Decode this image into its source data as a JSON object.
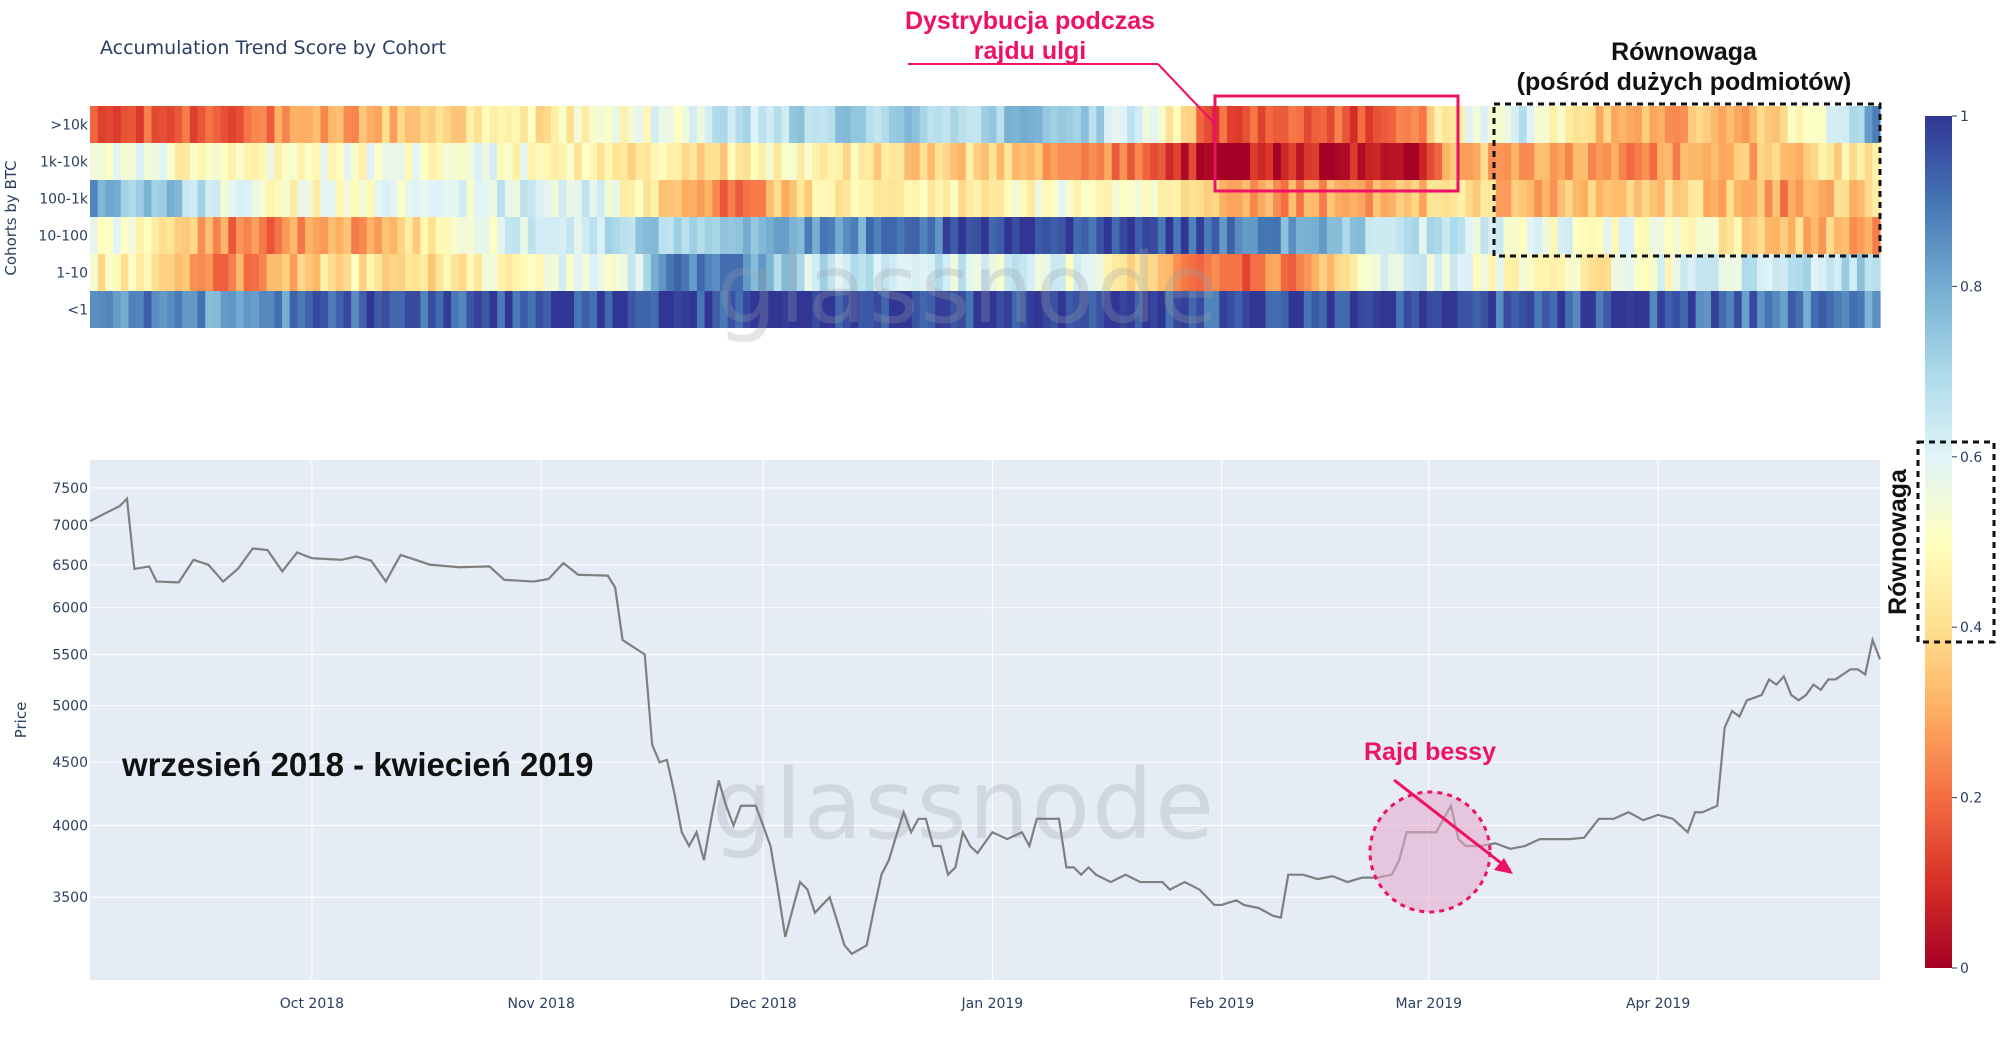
{
  "colors": {
    "plot_bg": "#e5ecf6",
    "grid": "#ffffff",
    "price_line": "#7f7f7f",
    "accent": "#ee1166",
    "colorscale": [
      "#a50026",
      "#d73027",
      "#f46d43",
      "#fdae61",
      "#fee090",
      "#ffffbf",
      "#e0f3f8",
      "#abd9e9",
      "#74add1",
      "#4575b4",
      "#313695"
    ]
  },
  "watermark": "glassnode",
  "heatmap": {
    "title": "Accumulation Trend Score by Cohort",
    "ylabel": "Cohorts by BTC",
    "cohorts": [
      ">10k",
      "1k-10k",
      "100-1k",
      "10-100",
      "1-10",
      "<1"
    ],
    "n_days": 233,
    "days_to_last_label": 206,
    "colorbar_ticks": [
      "1",
      "0.8",
      "0.6",
      "0.4",
      "0.2",
      "0"
    ]
  },
  "chart_data": {
    "type": "line",
    "ylabel": "Price",
    "ylim": [
      3000,
      7900
    ],
    "yticks": [
      3500,
      4000,
      4500,
      5000,
      5500,
      6000,
      6500,
      7000,
      7500
    ],
    "ytick_labels": [
      "3500",
      "4000",
      "4500",
      "5000",
      "5500",
      "6000",
      "6500",
      "7000",
      "7500"
    ],
    "xticks": [
      "Oct 2018",
      "Nov 2018",
      "Dec 2018",
      "Jan 2019",
      "Feb 2019",
      "Mar 2019",
      "Apr 2019"
    ],
    "keypoints": [
      [
        0,
        7050
      ],
      [
        2,
        7150
      ],
      [
        4,
        7250
      ],
      [
        5,
        7350
      ],
      [
        6,
        6450
      ],
      [
        8,
        6480
      ],
      [
        9,
        6300
      ],
      [
        12,
        6290
      ],
      [
        14,
        6560
      ],
      [
        16,
        6500
      ],
      [
        18,
        6300
      ],
      [
        20,
        6450
      ],
      [
        22,
        6700
      ],
      [
        24,
        6680
      ],
      [
        26,
        6420
      ],
      [
        28,
        6650
      ],
      [
        30,
        6580
      ],
      [
        34,
        6560
      ],
      [
        36,
        6600
      ],
      [
        38,
        6550
      ],
      [
        40,
        6300
      ],
      [
        42,
        6620
      ],
      [
        44,
        6560
      ],
      [
        46,
        6500
      ],
      [
        50,
        6470
      ],
      [
        54,
        6480
      ],
      [
        56,
        6320
      ],
      [
        60,
        6300
      ],
      [
        62,
        6330
      ],
      [
        64,
        6520
      ],
      [
        66,
        6380
      ],
      [
        70,
        6370
      ],
      [
        71,
        6230
      ],
      [
        72,
        5650
      ],
      [
        74,
        5550
      ],
      [
        75,
        5500
      ],
      [
        76,
        4650
      ],
      [
        77,
        4500
      ],
      [
        78,
        4520
      ],
      [
        79,
        4250
      ],
      [
        80,
        3950
      ],
      [
        81,
        3850
      ],
      [
        82,
        3950
      ],
      [
        83,
        3750
      ],
      [
        84,
        4050
      ],
      [
        85,
        4350
      ],
      [
        86,
        4150
      ],
      [
        87,
        4000
      ],
      [
        88,
        4150
      ],
      [
        90,
        4150
      ],
      [
        92,
        3850
      ],
      [
        93,
        3550
      ],
      [
        94,
        3250
      ],
      [
        96,
        3600
      ],
      [
        97,
        3550
      ],
      [
        98,
        3400
      ],
      [
        100,
        3500
      ],
      [
        102,
        3200
      ],
      [
        103,
        3150
      ],
      [
        105,
        3200
      ],
      [
        107,
        3650
      ],
      [
        108,
        3750
      ],
      [
        110,
        4100
      ],
      [
        111,
        3950
      ],
      [
        112,
        4050
      ],
      [
        113,
        4050
      ],
      [
        114,
        3850
      ],
      [
        115,
        3850
      ],
      [
        116,
        3650
      ],
      [
        117,
        3700
      ],
      [
        118,
        3950
      ],
      [
        119,
        3850
      ],
      [
        120,
        3800
      ],
      [
        122,
        3950
      ],
      [
        124,
        3900
      ],
      [
        126,
        3950
      ],
      [
        127,
        3850
      ],
      [
        128,
        4050
      ],
      [
        131,
        4050
      ],
      [
        132,
        3700
      ],
      [
        133,
        3700
      ],
      [
        134,
        3650
      ],
      [
        135,
        3700
      ],
      [
        136,
        3650
      ],
      [
        138,
        3600
      ],
      [
        140,
        3650
      ],
      [
        142,
        3600
      ],
      [
        144,
        3600
      ],
      [
        145,
        3600
      ],
      [
        146,
        3550
      ],
      [
        148,
        3600
      ],
      [
        150,
        3550
      ],
      [
        152,
        3450
      ],
      [
        153,
        3450
      ],
      [
        155,
        3480
      ],
      [
        156,
        3450
      ],
      [
        158,
        3430
      ],
      [
        160,
        3380
      ],
      [
        161,
        3370
      ],
      [
        162,
        3650
      ],
      [
        164,
        3650
      ],
      [
        166,
        3620
      ],
      [
        168,
        3640
      ],
      [
        170,
        3600
      ],
      [
        172,
        3630
      ],
      [
        174,
        3630
      ],
      [
        176,
        3650
      ],
      [
        177,
        3750
      ],
      [
        178,
        3950
      ],
      [
        179,
        3950
      ],
      [
        180,
        3950
      ],
      [
        182,
        3950
      ],
      [
        184,
        4150
      ],
      [
        185,
        3900
      ],
      [
        186,
        3850
      ],
      [
        188,
        3850
      ],
      [
        190,
        3870
      ],
      [
        192,
        3830
      ],
      [
        194,
        3850
      ],
      [
        196,
        3900
      ],
      [
        198,
        3900
      ],
      [
        200,
        3900
      ],
      [
        202,
        3910
      ],
      [
        204,
        4050
      ],
      [
        206,
        4050
      ],
      [
        208,
        4100
      ],
      [
        210,
        4040
      ],
      [
        212,
        4080
      ],
      [
        214,
        4050
      ],
      [
        216,
        3950
      ],
      [
        217,
        4100
      ],
      [
        218,
        4100
      ],
      [
        220,
        4150
      ],
      [
        221,
        4800
      ],
      [
        222,
        4950
      ],
      [
        223,
        4900
      ],
      [
        224,
        5050
      ],
      [
        226,
        5100
      ],
      [
        227,
        5250
      ],
      [
        228,
        5200
      ],
      [
        229,
        5280
      ],
      [
        230,
        5100
      ],
      [
        231,
        5050
      ],
      [
        232,
        5100
      ],
      [
        233,
        5200
      ],
      [
        234,
        5150
      ],
      [
        235,
        5250
      ],
      [
        236,
        5250
      ],
      [
        237,
        5300
      ],
      [
        238,
        5350
      ],
      [
        239,
        5350
      ],
      [
        240,
        5300
      ],
      [
        241,
        5650
      ],
      [
        242,
        5450
      ]
    ],
    "n_days": 243
  },
  "annotations": {
    "distribution_line1": "Dystrybucja podczas",
    "distribution_line2": "rajdu ulgi",
    "equilibrium_line1": "Równowaga",
    "equilibrium_line2": "(pośród dużych podmiotów)",
    "period": "wrzesień 2018 - kwiecień 2019",
    "bear_rally": "Rajd bessy",
    "colorbar_equilibrium": "Równowaga"
  }
}
